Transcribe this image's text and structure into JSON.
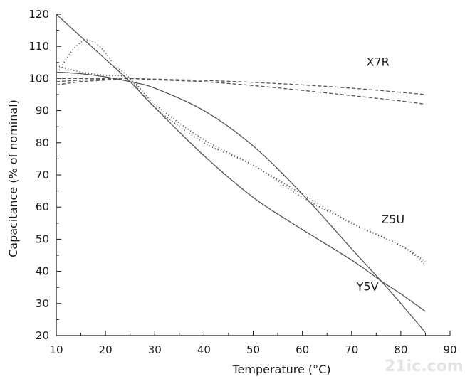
{
  "chart_data": {
    "type": "line",
    "xlabel": "Temperature (°C)",
    "ylabel": "Capacitance (% of nominal)",
    "xlim": [
      10,
      90
    ],
    "ylim": [
      20,
      120
    ],
    "xticks": [
      10,
      20,
      30,
      40,
      50,
      60,
      70,
      80,
      90
    ],
    "yticks": [
      20,
      30,
      40,
      50,
      60,
      70,
      80,
      90,
      100,
      110,
      120
    ],
    "grid": false,
    "legend": "none",
    "series": [
      {
        "name": "X7R",
        "style": "dashed",
        "x": [
          10,
          15,
          20,
          25,
          30,
          40,
          50,
          60,
          70,
          80,
          85
        ],
        "y": [
          98,
          99,
          99.5,
          100,
          99.8,
          99.4,
          98.8,
          98,
          97,
          95.7,
          95
        ]
      },
      {
        "name": "X7R",
        "style": "dashed",
        "x": [
          10,
          15,
          20,
          25,
          30,
          40,
          50,
          60,
          70,
          80,
          85
        ],
        "y": [
          99,
          99.5,
          99.8,
          100,
          99.6,
          99,
          97.8,
          96.3,
          94.7,
          93,
          92
        ]
      },
      {
        "name": "X7R",
        "style": "dashed",
        "x": [
          10,
          15,
          20,
          25
        ],
        "y": [
          100,
          100,
          100,
          100
        ]
      },
      {
        "name": "Z5U",
        "style": "dotted",
        "x": [
          10,
          12,
          14,
          16,
          18,
          20,
          22,
          25,
          30,
          40,
          50,
          60,
          70,
          80,
          85
        ],
        "y": [
          101,
          106,
          110,
          112,
          111,
          108,
          104,
          100,
          91,
          80,
          73,
          63,
          55,
          48,
          42
        ]
      },
      {
        "name": "Z5U",
        "style": "dotted",
        "x": [
          10,
          15,
          20,
          25,
          30,
          40,
          50,
          60,
          70,
          80,
          85
        ],
        "y": [
          104,
          102,
          101,
          100,
          92,
          81,
          73,
          64,
          55,
          48,
          43
        ]
      },
      {
        "name": "Y5V",
        "style": "solid",
        "x": [
          10,
          15,
          20,
          25,
          30,
          40,
          50,
          60,
          70,
          76,
          80,
          85
        ],
        "y": [
          102,
          101.5,
          100.5,
          99,
          97,
          90,
          79,
          64,
          47,
          37,
          30,
          21
        ]
      },
      {
        "name": "Y5V",
        "style": "solid",
        "x": [
          10,
          15,
          20,
          25,
          30,
          40,
          50,
          60,
          70,
          76,
          80,
          85
        ],
        "y": [
          120,
          113,
          106,
          99,
          91,
          76,
          63,
          53,
          43.5,
          37,
          33,
          27.5
        ]
      }
    ],
    "labels": [
      {
        "text": "X7R",
        "x": 73,
        "y": 104
      },
      {
        "text": "Z5U",
        "x": 76,
        "y": 55
      },
      {
        "text": "Y5V",
        "x": 71,
        "y": 34
      }
    ]
  },
  "watermark": "21ic.com"
}
